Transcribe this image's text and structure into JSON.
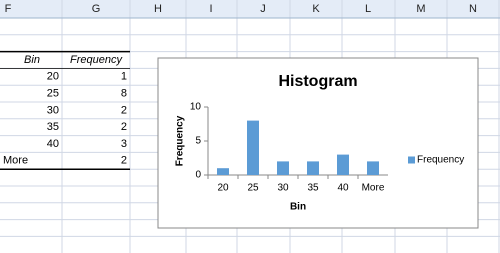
{
  "columns": [
    "F",
    "G",
    "H",
    "I",
    "J",
    "K",
    "L",
    "M",
    "N"
  ],
  "table": {
    "header": [
      "Bin",
      "Frequency"
    ],
    "rows": [
      [
        "20",
        1
      ],
      [
        "25",
        8
      ],
      [
        "30",
        2
      ],
      [
        "35",
        2
      ],
      [
        "40",
        3
      ],
      [
        "More",
        2
      ]
    ]
  },
  "chart_data": {
    "type": "bar",
    "title": "Histogram",
    "x_label": "Bin",
    "y_label": "Frequency",
    "categories": [
      "20",
      "25",
      "30",
      "35",
      "40",
      "More"
    ],
    "series": [
      {
        "name": "Frequency",
        "color": "#5b9bd5",
        "values": [
          1,
          8,
          2,
          2,
          3,
          2
        ]
      }
    ],
    "ylim": [
      0,
      10
    ],
    "yticks": [
      0,
      5,
      10
    ],
    "legend": "right"
  }
}
